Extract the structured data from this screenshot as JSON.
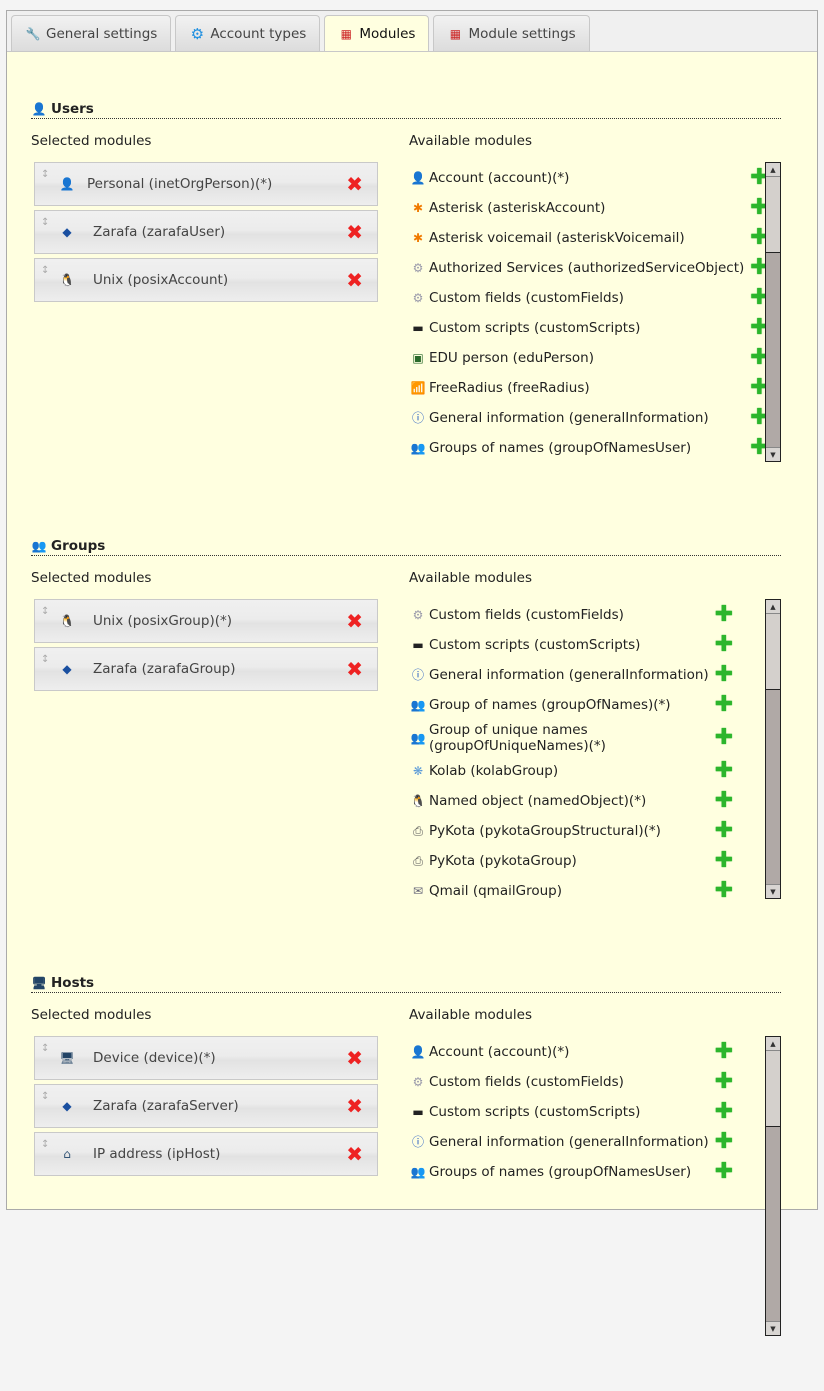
{
  "tabs": [
    {
      "label": "General settings",
      "icon": "wrench-icon",
      "active": false
    },
    {
      "label": "Account types",
      "icon": "gear-icon",
      "active": false
    },
    {
      "label": "Modules",
      "icon": "blocks-icon",
      "active": true
    },
    {
      "label": "Module settings",
      "icon": "blocks-icon",
      "active": false
    }
  ],
  "labels": {
    "selected": "Selected modules",
    "available": "Available modules"
  },
  "colors": {
    "background": "#ffffe0",
    "remove": "#e22222",
    "add": "#2cb52c"
  },
  "sections": [
    {
      "title": "Users",
      "icon": "user-icon",
      "selected": [
        {
          "name": "Personal (inetOrgPerson)(*)",
          "icon": "person-icon"
        },
        {
          "name": "Zarafa (zarafaUser)",
          "icon": "zarafa-icon"
        },
        {
          "name": "Unix (posixAccount)",
          "icon": "tux-icon"
        }
      ],
      "available": [
        {
          "name": "Account (account)(*)",
          "icon": "person-icon"
        },
        {
          "name": "Asterisk (asteriskAccount)",
          "icon": "asterisk-icon"
        },
        {
          "name": "Asterisk voicemail (asteriskVoicemail)",
          "icon": "asterisk-icon"
        },
        {
          "name": "Authorized Services (authorizedServiceObject)",
          "icon": "gear-icon"
        },
        {
          "name": "Custom fields (customFields)",
          "icon": "gear-icon"
        },
        {
          "name": "Custom scripts (customScripts)",
          "icon": "terminal-icon"
        },
        {
          "name": "EDU person (eduPerson)",
          "icon": "blackboard-icon"
        },
        {
          "name": "FreeRadius (freeRadius)",
          "icon": "antenna-icon"
        },
        {
          "name": "General information (generalInformation)",
          "icon": "info-icon"
        },
        {
          "name": "Groups of names (groupOfNamesUser)",
          "icon": "group-icon"
        }
      ]
    },
    {
      "title": "Groups",
      "icon": "group-icon",
      "selected": [
        {
          "name": "Unix (posixGroup)(*)",
          "icon": "tux-icon"
        },
        {
          "name": "Zarafa (zarafaGroup)",
          "icon": "zarafa-icon"
        }
      ],
      "available": [
        {
          "name": "Custom fields (customFields)",
          "icon": "gear-icon"
        },
        {
          "name": "Custom scripts (customScripts)",
          "icon": "terminal-icon"
        },
        {
          "name": "General information (generalInformation)",
          "icon": "info-icon"
        },
        {
          "name": "Group of names (groupOfNames)(*)",
          "icon": "group-icon"
        },
        {
          "name": "Group of unique names (groupOfUniqueNames)(*)",
          "icon": "group-icon"
        },
        {
          "name": "Kolab (kolabGroup)",
          "icon": "kolab-icon"
        },
        {
          "name": "Named object (namedObject)(*)",
          "icon": "tux-icon"
        },
        {
          "name": "PyKota (pykotaGroupStructural)(*)",
          "icon": "printer-icon"
        },
        {
          "name": "PyKota (pykotaGroup)",
          "icon": "printer-icon"
        },
        {
          "name": "Qmail (qmailGroup)",
          "icon": "mail-icon"
        }
      ]
    },
    {
      "title": "Hosts",
      "icon": "computer-icon",
      "selected": [
        {
          "name": "Device (device)(*)",
          "icon": "computer-icon"
        },
        {
          "name": "Zarafa (zarafaServer)",
          "icon": "zarafa-icon"
        },
        {
          "name": "IP address (ipHost)",
          "icon": "network-icon"
        }
      ],
      "available": [
        {
          "name": "Account (account)(*)",
          "icon": "person-icon"
        },
        {
          "name": "Custom fields (customFields)",
          "icon": "gear-icon"
        },
        {
          "name": "Custom scripts (customScripts)",
          "icon": "terminal-icon"
        },
        {
          "name": "General information (generalInformation)",
          "icon": "info-icon"
        },
        {
          "name": "Groups of names (groupOfNamesUser)",
          "icon": "group-icon"
        }
      ]
    }
  ]
}
